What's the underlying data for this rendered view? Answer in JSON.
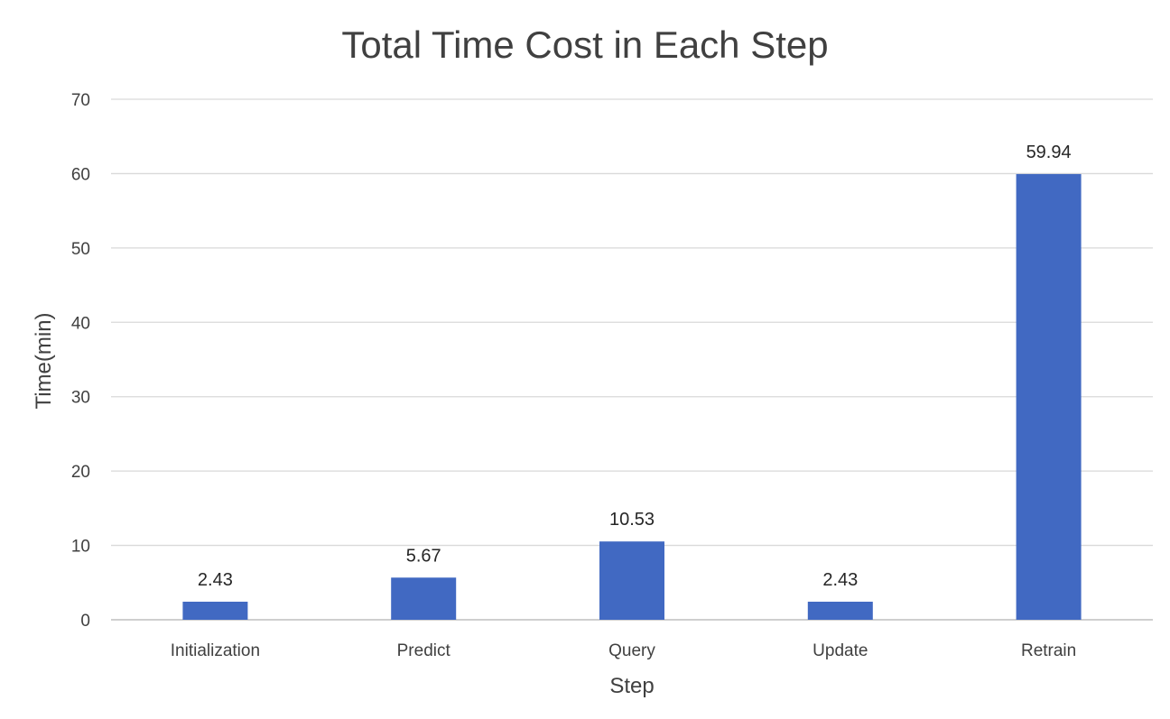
{
  "chart_data": {
    "type": "bar",
    "title": "Total Time Cost in Each Step",
    "xlabel": "Step",
    "ylabel": "Time(min)",
    "categories": [
      "Initialization",
      "Predict",
      "Query",
      "Update",
      "Retrain"
    ],
    "values": [
      2.43,
      5.67,
      10.53,
      2.43,
      59.94
    ],
    "data_labels": [
      "2.43",
      "5.67",
      "10.53",
      "2.43",
      "59.94"
    ],
    "ylim": [
      0,
      70
    ],
    "yticks": [
      0,
      10,
      20,
      30,
      40,
      50,
      60,
      70
    ],
    "grid": true,
    "legend": "none",
    "bar_color": "#4169c2"
  }
}
